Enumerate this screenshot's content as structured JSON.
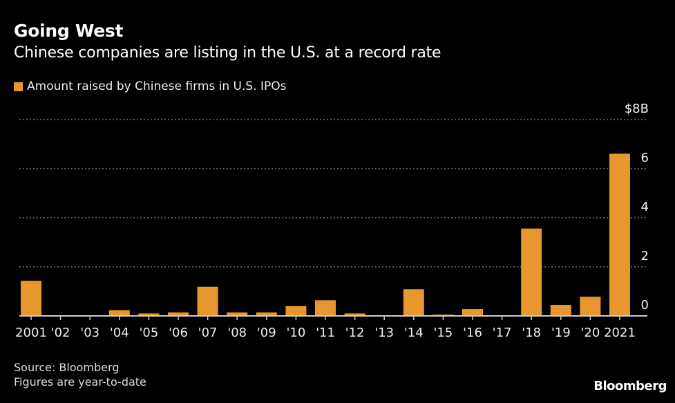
{
  "chart_data": {
    "type": "bar",
    "title": "Going West",
    "subtitle": "Chinese companies are listing in the U.S. at a record rate",
    "legend": [
      {
        "name": "Amount raised by Chinese firms in U.S. IPOs",
        "color": "#e8962e"
      }
    ],
    "legend_placement": "top-left",
    "categories": [
      "2001",
      "'02",
      "'03",
      "'04",
      "'05",
      "'06",
      "'07",
      "'08",
      "'09",
      "'10",
      "'11",
      "'12",
      "'13",
      "'14",
      "'15",
      "'16",
      "'17",
      "'18",
      "'19",
      "'20",
      "2021"
    ],
    "series": [
      {
        "name": "Amount raised by Chinese firms in U.S. IPOs",
        "values": [
          1.43,
          0.02,
          0.02,
          0.23,
          0.1,
          0.14,
          1.19,
          0.14,
          0.14,
          0.4,
          0.64,
          0.1,
          0.02,
          1.09,
          0.05,
          0.28,
          0.02,
          3.56,
          0.45,
          0.78,
          6.61
        ]
      }
    ],
    "ylim": [
      0,
      8
    ],
    "yticks": [
      0,
      2,
      4,
      6,
      8
    ],
    "ytick_labels": [
      "0",
      "2",
      "4",
      "6",
      "$8B"
    ],
    "y_axis_side": "right",
    "grid": "horizontal dotted",
    "xlabel": "",
    "ylabel": ""
  },
  "footer": {
    "source": "Source: Bloomberg",
    "note": "Figures are year-to-date"
  },
  "brand": "Bloomberg",
  "colors": {
    "bar": "#e8962e",
    "background": "#000000",
    "grid": "#777777"
  }
}
